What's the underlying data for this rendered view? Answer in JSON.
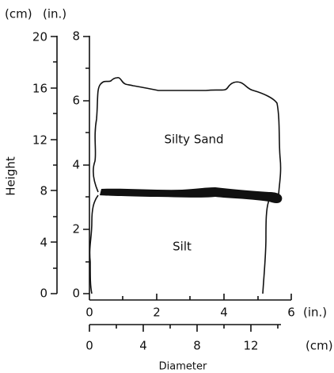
{
  "units": {
    "cm": "(cm)",
    "in": "(in.)"
  },
  "height_axis": {
    "label": "Height",
    "cm_ticks": [
      "20",
      "16",
      "12",
      "8",
      "4",
      "0"
    ],
    "in_ticks": [
      "8",
      "6",
      "4",
      "2",
      "0"
    ]
  },
  "diameter_axis": {
    "label": "Diameter",
    "in_ticks": [
      "0",
      "2",
      "4",
      "6"
    ],
    "in_unit": "(in.)",
    "cm_ticks": [
      "0",
      "4",
      "8",
      "12"
    ],
    "cm_unit": "(cm)"
  },
  "layers": {
    "upper": "Silty Sand",
    "lower": "Silt"
  }
}
